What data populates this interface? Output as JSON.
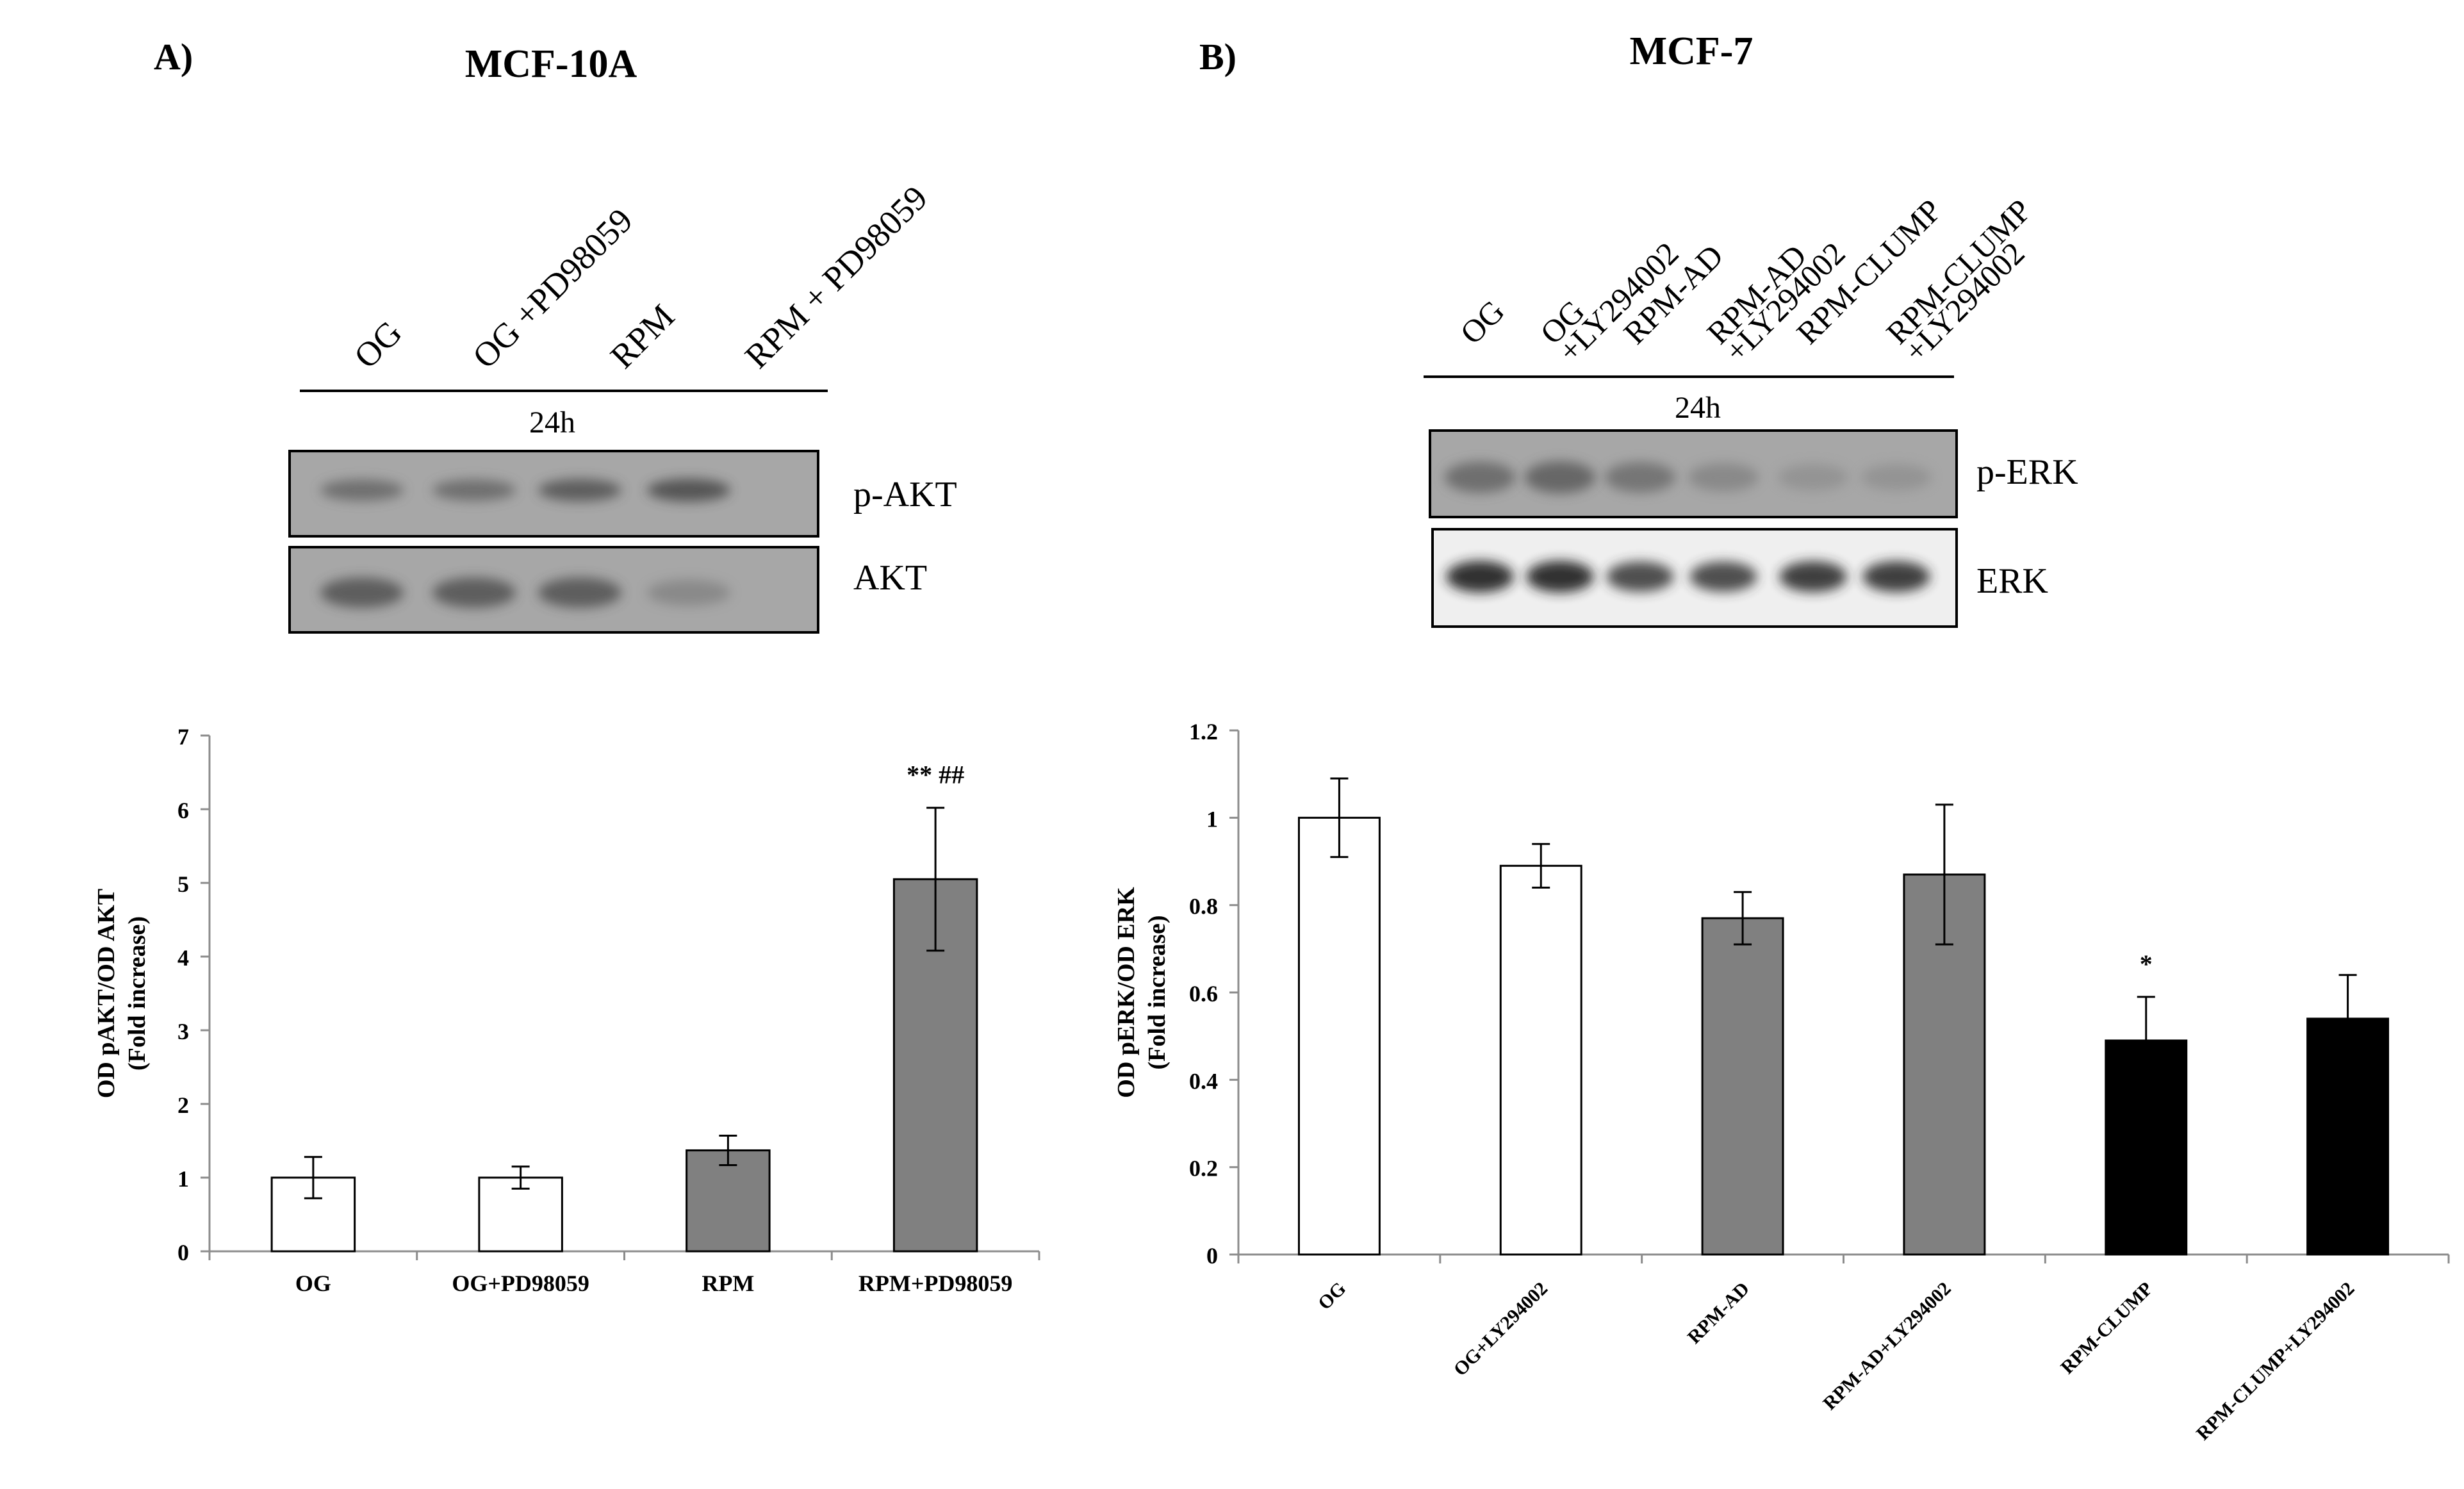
{
  "panels": [
    {
      "letter": "A)",
      "cell_line": "MCF-10A",
      "blot": {
        "lane_labels": [
          [
            "OG"
          ],
          [
            "OG +PD98059"
          ],
          [
            "RPM"
          ],
          [
            "RPM + PD98059"
          ]
        ],
        "timepoint": "24h",
        "bands": [
          {
            "label": "p-AKT",
            "intensity": [
              0.55,
              0.55,
              0.65,
              0.7
            ]
          },
          {
            "label": "AKT",
            "intensity": [
              0.65,
              0.65,
              0.65,
              0.35
            ]
          }
        ]
      }
    },
    {
      "letter": "B)",
      "cell_line": "MCF-7",
      "blot": {
        "lane_labels": [
          [
            "OG"
          ],
          [
            "OG",
            "+LY294002"
          ],
          [
            "RPM-AD"
          ],
          [
            "RPM-AD",
            "+LY294002"
          ],
          [
            "RPM-CLUMP"
          ],
          [
            "RPM-CLUMP",
            "+LY294002"
          ]
        ],
        "timepoint": "24h",
        "bands": [
          {
            "label": "p-ERK",
            "intensity": [
              0.55,
              0.6,
              0.5,
              0.35,
              0.25,
              0.25
            ]
          },
          {
            "label": "ERK",
            "intensity": [
              0.95,
              0.95,
              0.85,
              0.85,
              0.9,
              0.9
            ]
          }
        ]
      }
    }
  ],
  "colors": {
    "white_bar": "#ffffff",
    "gray_bar": "#808080",
    "black_bar": "#000000",
    "blot_background": "#a7a7a7",
    "ecl_background": "#efefef"
  },
  "chart_data": [
    {
      "type": "bar",
      "ylabel": [
        "OD pAKT/OD AKT",
        "(Fold increase)"
      ],
      "categories": [
        "OG",
        "OG+PD98059",
        "RPM",
        "RPM+PD98059"
      ],
      "values": [
        1.0,
        1.0,
        1.37,
        5.05
      ],
      "errors": [
        0.28,
        0.15,
        0.2,
        0.97
      ],
      "bar_colors": [
        "#ffffff",
        "#ffffff",
        "#808080",
        "#808080"
      ],
      "annotations": [
        "",
        "",
        "",
        "** ##"
      ],
      "ylim": [
        0,
        7
      ],
      "yticks": [
        0,
        1,
        2,
        3,
        4,
        5,
        6,
        7
      ],
      "grid": false
    },
    {
      "type": "bar",
      "ylabel": [
        "OD pERK/OD ERK",
        "(Fold increase)"
      ],
      "categories": [
        "OG",
        "OG+LY294002",
        "RPM-AD",
        "RPM-AD+LY294002",
        "RPM-CLUMP",
        "RPM-CLUMP+LY294002"
      ],
      "values": [
        1.0,
        0.89,
        0.77,
        0.87,
        0.49,
        0.54
      ],
      "errors": [
        0.09,
        0.05,
        0.06,
        0.16,
        0.1,
        0.1
      ],
      "bar_colors": [
        "#ffffff",
        "#ffffff",
        "#808080",
        "#808080",
        "#000000",
        "#000000"
      ],
      "annotations": [
        "",
        "",
        "",
        "",
        "*",
        ""
      ],
      "ylim": [
        0,
        1.2
      ],
      "yticks": [
        "0",
        "0.2",
        "0.4",
        "0.6",
        "0.8",
        "1",
        "1.2"
      ],
      "grid": false
    }
  ]
}
